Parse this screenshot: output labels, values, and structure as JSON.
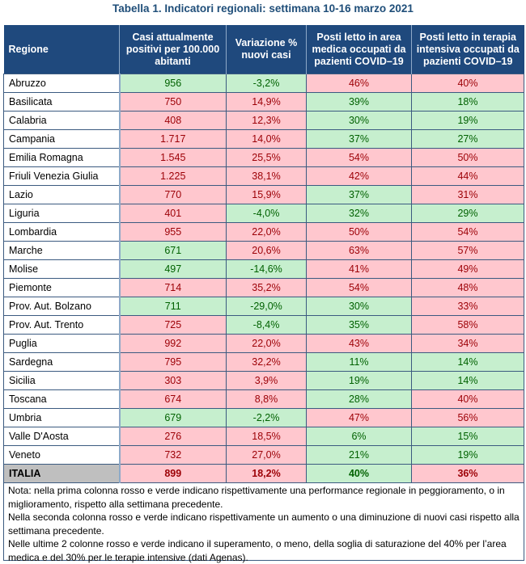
{
  "title": "Tabella 1. Indicatori regionali: settimana 10-16 marzo 2021",
  "colors": {
    "header_bg": "#1f497d",
    "red_bg": "#ffc7ce",
    "red_text": "#9c0006",
    "green_bg": "#c6efce",
    "green_text": "#006100",
    "total_label_bg": "#bfbfbf"
  },
  "headers": [
    "Regione",
    "Casi attualmente positivi per 100.000 abitanti",
    "Variazione % nuovi casi",
    "Posti letto in area medica occupati da pazienti COVID–19",
    "Posti letto in terapia intensiva occupati da pazienti COVID–19"
  ],
  "rows": [
    {
      "region": "Abruzzo",
      "cells": [
        {
          "v": "956",
          "s": "green"
        },
        {
          "v": "-3,2%",
          "s": "green"
        },
        {
          "v": "46%",
          "s": "red"
        },
        {
          "v": "40%",
          "s": "red"
        }
      ]
    },
    {
      "region": "Basilicata",
      "cells": [
        {
          "v": "750",
          "s": "red"
        },
        {
          "v": "14,9%",
          "s": "red"
        },
        {
          "v": "39%",
          "s": "green"
        },
        {
          "v": "18%",
          "s": "green"
        }
      ]
    },
    {
      "region": "Calabria",
      "cells": [
        {
          "v": "408",
          "s": "red"
        },
        {
          "v": "12,3%",
          "s": "red"
        },
        {
          "v": "30%",
          "s": "green"
        },
        {
          "v": "19%",
          "s": "green"
        }
      ]
    },
    {
      "region": "Campania",
      "cells": [
        {
          "v": "1.717",
          "s": "red"
        },
        {
          "v": "14,0%",
          "s": "red"
        },
        {
          "v": "37%",
          "s": "green"
        },
        {
          "v": "27%",
          "s": "green"
        }
      ]
    },
    {
      "region": "Emilia Romagna",
      "cells": [
        {
          "v": "1.545",
          "s": "red"
        },
        {
          "v": "25,5%",
          "s": "red"
        },
        {
          "v": "54%",
          "s": "red"
        },
        {
          "v": "50%",
          "s": "red"
        }
      ]
    },
    {
      "region": "Friuli Venezia Giulia",
      "cells": [
        {
          "v": "1.225",
          "s": "red"
        },
        {
          "v": "38,1%",
          "s": "red"
        },
        {
          "v": "42%",
          "s": "red"
        },
        {
          "v": "44%",
          "s": "red"
        }
      ]
    },
    {
      "region": "Lazio",
      "cells": [
        {
          "v": "770",
          "s": "red"
        },
        {
          "v": "15,9%",
          "s": "red"
        },
        {
          "v": "37%",
          "s": "green"
        },
        {
          "v": "31%",
          "s": "red"
        }
      ]
    },
    {
      "region": "Liguria",
      "cells": [
        {
          "v": "401",
          "s": "red"
        },
        {
          "v": "-4,0%",
          "s": "green"
        },
        {
          "v": "32%",
          "s": "green"
        },
        {
          "v": "29%",
          "s": "green"
        }
      ]
    },
    {
      "region": "Lombardia",
      "cells": [
        {
          "v": "955",
          "s": "red"
        },
        {
          "v": "22,0%",
          "s": "red"
        },
        {
          "v": "50%",
          "s": "red"
        },
        {
          "v": "54%",
          "s": "red"
        }
      ]
    },
    {
      "region": "Marche",
      "cells": [
        {
          "v": "671",
          "s": "green"
        },
        {
          "v": "20,6%",
          "s": "red"
        },
        {
          "v": "63%",
          "s": "red"
        },
        {
          "v": "57%",
          "s": "red"
        }
      ]
    },
    {
      "region": "Molise",
      "cells": [
        {
          "v": "497",
          "s": "green"
        },
        {
          "v": "-14,6%",
          "s": "green"
        },
        {
          "v": "41%",
          "s": "red"
        },
        {
          "v": "49%",
          "s": "red"
        }
      ]
    },
    {
      "region": "Piemonte",
      "cells": [
        {
          "v": "714",
          "s": "red"
        },
        {
          "v": "35,2%",
          "s": "red"
        },
        {
          "v": "54%",
          "s": "red"
        },
        {
          "v": "48%",
          "s": "red"
        }
      ]
    },
    {
      "region": "Prov. Aut. Bolzano",
      "cells": [
        {
          "v": "711",
          "s": "green"
        },
        {
          "v": "-29,0%",
          "s": "green"
        },
        {
          "v": "30%",
          "s": "green"
        },
        {
          "v": "33%",
          "s": "red"
        }
      ]
    },
    {
      "region": "Prov. Aut. Trento",
      "cells": [
        {
          "v": "725",
          "s": "red"
        },
        {
          "v": "-8,4%",
          "s": "green"
        },
        {
          "v": "35%",
          "s": "green"
        },
        {
          "v": "58%",
          "s": "red"
        }
      ]
    },
    {
      "region": "Puglia",
      "cells": [
        {
          "v": "992",
          "s": "red"
        },
        {
          "v": "22,0%",
          "s": "red"
        },
        {
          "v": "43%",
          "s": "red"
        },
        {
          "v": "34%",
          "s": "red"
        }
      ]
    },
    {
      "region": "Sardegna",
      "cells": [
        {
          "v": "795",
          "s": "red"
        },
        {
          "v": "32,2%",
          "s": "red"
        },
        {
          "v": "11%",
          "s": "green"
        },
        {
          "v": "14%",
          "s": "green"
        }
      ]
    },
    {
      "region": "Sicilia",
      "cells": [
        {
          "v": "303",
          "s": "red"
        },
        {
          "v": "3,9%",
          "s": "red"
        },
        {
          "v": "19%",
          "s": "green"
        },
        {
          "v": "14%",
          "s": "green"
        }
      ]
    },
    {
      "region": "Toscana",
      "cells": [
        {
          "v": "674",
          "s": "red"
        },
        {
          "v": "8,8%",
          "s": "red"
        },
        {
          "v": "28%",
          "s": "green"
        },
        {
          "v": "40%",
          "s": "red"
        }
      ]
    },
    {
      "region": "Umbria",
      "cells": [
        {
          "v": "679",
          "s": "green"
        },
        {
          "v": "-2,2%",
          "s": "green"
        },
        {
          "v": "47%",
          "s": "red"
        },
        {
          "v": "56%",
          "s": "red"
        }
      ]
    },
    {
      "region": "Valle D'Aosta",
      "cells": [
        {
          "v": "276",
          "s": "red"
        },
        {
          "v": "18,5%",
          "s": "red"
        },
        {
          "v": "6%",
          "s": "green"
        },
        {
          "v": "15%",
          "s": "green"
        }
      ]
    },
    {
      "region": "Veneto",
      "cells": [
        {
          "v": "732",
          "s": "red"
        },
        {
          "v": "27,0%",
          "s": "red"
        },
        {
          "v": "21%",
          "s": "green"
        },
        {
          "v": "19%",
          "s": "green"
        }
      ]
    }
  ],
  "total": {
    "region": "ITALIA",
    "cells": [
      {
        "v": "899",
        "s": "red"
      },
      {
        "v": "18,2%",
        "s": "red"
      },
      {
        "v": "40%",
        "s": "green"
      },
      {
        "v": "36%",
        "s": "red"
      }
    ]
  },
  "notes": [
    "Nota: nella prima colonna rosso e verde indicano rispettivamente una performance regionale in peggioramento, o in miglioramento, rispetto alla settimana precedente.",
    "Nella seconda colonna rosso e verde indicano rispettivamente un aumento o una diminuzione di nuovi casi rispetto alla settimana precedente.",
    "Nelle ultime 2 colonne rosso e verde indicano il superamento, o meno, della soglia di saturazione del 40% per l’area medica e del 30% per le terapie intensive (dati Agenas)."
  ]
}
